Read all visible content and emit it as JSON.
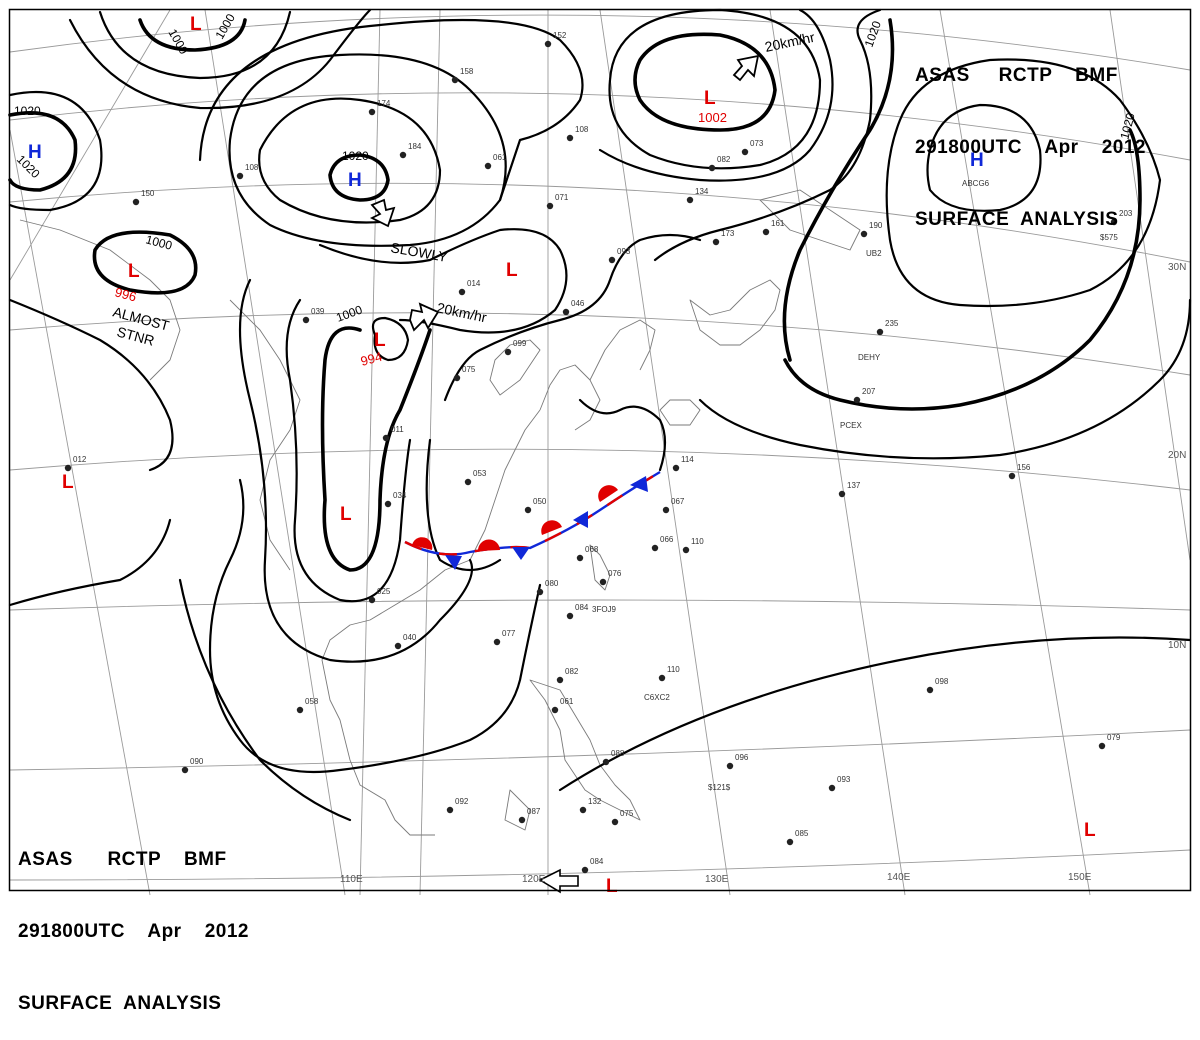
{
  "header_top": {
    "line1": "ASAS     RCTP    BMF",
    "line2": "291800UTC    Apr    2012",
    "line3": "SURFACE  ANALYSIS"
  },
  "header_bottom": {
    "line1": "ASAS      RCTP    BMF",
    "line2": "291800UTC    Apr    2012",
    "line3": "SURFACE  ANALYSIS"
  },
  "grid_labels": {
    "lon_110": "110E",
    "lon_120": "120E",
    "lon_130": "130E",
    "lon_140": "140E",
    "lon_150": "150E",
    "lat_30": "30N",
    "lat_20": "20N",
    "lat_10": "10N"
  },
  "pressure_centers": [
    {
      "type": "L",
      "value": ""
    },
    {
      "type": "H",
      "value": ""
    },
    {
      "type": "H",
      "value": ""
    },
    {
      "type": "L",
      "value": "996"
    },
    {
      "type": "L",
      "value": "994"
    },
    {
      "type": "L",
      "value": ""
    },
    {
      "type": "L",
      "value": "1002"
    },
    {
      "type": "H",
      "value": ""
    },
    {
      "type": "L",
      "value": ""
    },
    {
      "type": "L",
      "value": ""
    },
    {
      "type": "L",
      "value": ""
    },
    {
      "type": "L",
      "value": ""
    }
  ],
  "isobar_labels": [
    "1000",
    "1000",
    "1020",
    "1020",
    "1020",
    "1000",
    "1000",
    "1020",
    "1020"
  ],
  "motion_notes": {
    "slowly": "SLOWLY",
    "speed_1": "20km/hr",
    "speed_2": "20km/hr",
    "almost": "ALMOST",
    "stnr": "STNR"
  },
  "station_values": [
    "152",
    "108",
    "158",
    "174",
    "184",
    "061",
    "071",
    "093",
    "046",
    "099",
    "014",
    "075",
    "053",
    "050",
    "068",
    "076",
    "080",
    "077",
    "084",
    "082",
    "061",
    "088",
    "092",
    "087",
    "110",
    "096",
    "093",
    "085",
    "079",
    "098",
    "137",
    "156",
    "207",
    "235",
    "190",
    "161",
    "173",
    "134",
    "082",
    "073",
    "110",
    "058",
    "090",
    "025",
    "040",
    "034",
    "011",
    "039",
    "012",
    "150",
    "108",
    "203",
    "114",
    "067",
    "066",
    "084",
    "075",
    "132"
  ],
  "station_ids": [
    "DEHY",
    "PCEX",
    "UB2",
    "ABCG6",
    "C6XC2",
    "3FOJ9",
    "$121$",
    "$575"
  ],
  "colors": {
    "low": "#e00000",
    "high": "#1028d8",
    "warm_front": "#e00000",
    "cold_front": "#1028d8",
    "isobar": "#000000",
    "grid": "#9a9a9a"
  }
}
